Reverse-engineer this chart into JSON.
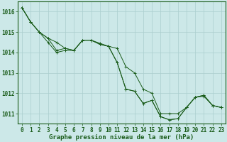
{
  "title": "Graphe pression niveau de la mer (hPa)",
  "bg_color": "#cce8e8",
  "line_color": "#1a5c1a",
  "grid_color": "#aacece",
  "series": [
    [
      1016.2,
      1015.5,
      1015.0,
      1014.7,
      1014.5,
      1014.2,
      1014.1,
      1014.6,
      1014.6,
      1014.45,
      1014.3,
      1014.2,
      1013.3,
      1013.0,
      1012.2,
      1012.0,
      1011.0,
      1011.0,
      1011.0,
      1011.3,
      1011.8,
      1011.85,
      1011.4,
      1011.3
    ],
    [
      1016.2,
      1015.5,
      1015.0,
      1014.7,
      1014.1,
      1014.2,
      1014.1,
      1014.6,
      1014.6,
      1014.4,
      1014.3,
      1013.5,
      1012.2,
      1012.1,
      1011.5,
      1011.65,
      1010.85,
      1010.7,
      1010.75,
      1011.3,
      1011.8,
      1011.9,
      1011.4,
      1011.3
    ],
    [
      1016.2,
      1015.5,
      1015.0,
      1014.5,
      1014.0,
      1014.1,
      1014.1,
      1014.6,
      1014.6,
      1014.4,
      1014.3,
      1013.5,
      1012.2,
      1012.1,
      1011.5,
      1011.65,
      1010.85,
      1010.7,
      1010.75,
      1011.3,
      1011.8,
      1011.9,
      1011.4,
      1011.3
    ]
  ],
  "ylim": [
    1010.5,
    1016.5
  ],
  "yticks": [
    1011,
    1012,
    1013,
    1014,
    1015,
    1016
  ],
  "xlim": [
    -0.5,
    23.5
  ],
  "xticks": [
    0,
    1,
    2,
    3,
    4,
    5,
    6,
    7,
    8,
    9,
    10,
    11,
    12,
    13,
    14,
    15,
    16,
    17,
    18,
    19,
    20,
    21,
    22,
    23
  ],
  "tick_fontsize": 5.5,
  "xlabel_fontsize": 6.5,
  "figsize": [
    3.2,
    2.0
  ],
  "dpi": 100
}
